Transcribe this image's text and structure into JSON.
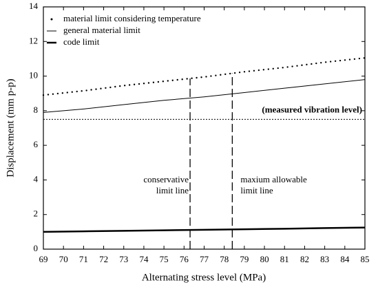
{
  "chart_data": {
    "type": "line",
    "xlabel": "Alternating stress level (MPa)",
    "ylabel": "Displacement (mm p-p)",
    "xlim": [
      69,
      85
    ],
    "xticks": [
      69,
      70,
      71,
      72,
      73,
      74,
      75,
      76,
      77,
      78,
      79,
      80,
      81,
      82,
      83,
      84,
      85
    ],
    "ylim": [
      0,
      14
    ],
    "yticks": [
      0,
      2,
      4,
      6,
      8,
      10,
      12,
      14
    ],
    "x": [
      69,
      71,
      73,
      75,
      77,
      79,
      81,
      83,
      85
    ],
    "series": [
      {
        "name": "material limit considering temperature",
        "color": "#000000",
        "line_style": "dotted",
        "values": [
          8.9,
          9.15,
          9.45,
          9.7,
          9.95,
          10.25,
          10.5,
          10.8,
          11.05
        ]
      },
      {
        "name": "general material limit",
        "color": "#000000",
        "line_style": "thin",
        "values": [
          7.9,
          8.1,
          8.35,
          8.6,
          8.8,
          9.05,
          9.3,
          9.55,
          9.8
        ]
      },
      {
        "name": "code limit",
        "color": "#000000",
        "line_style": "thick",
        "values": [
          1.0,
          1.03,
          1.06,
          1.09,
          1.12,
          1.15,
          1.18,
          1.22,
          1.25
        ]
      }
    ],
    "hlines": [
      {
        "value": 7.5,
        "label": "(measured vibration level)"
      }
    ],
    "vlines": [
      {
        "value": 76.3,
        "label": [
          "conservative",
          "limit line"
        ]
      },
      {
        "value": 78.4,
        "label": [
          "maxium allowable",
          "limit line"
        ]
      }
    ],
    "legend": "upper left"
  }
}
